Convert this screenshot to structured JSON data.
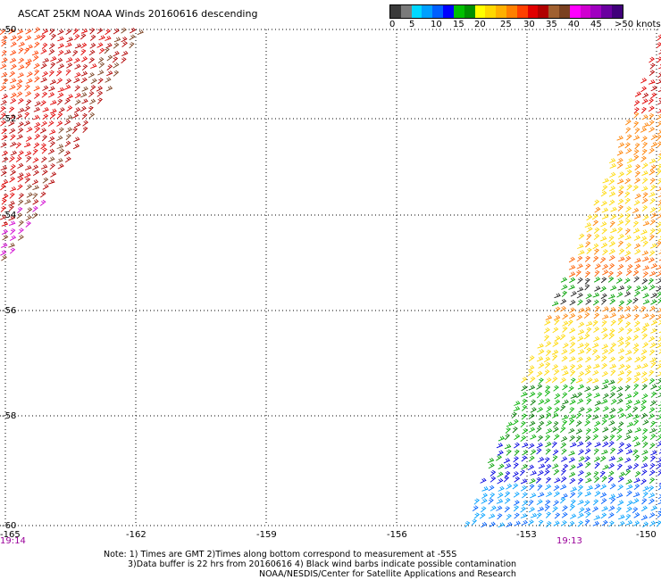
{
  "title": "ASCAT 25KM NOAA Winds 20160616 descending",
  "colorbar": {
    "colors": [
      "#3a3a3a",
      "#7a7a7a",
      "#00d8ff",
      "#00a0ff",
      "#0060ff",
      "#0000ff",
      "#00c000",
      "#009000",
      "#ffff00",
      "#ffd800",
      "#ffb000",
      "#ff8000",
      "#ff4000",
      "#e00000",
      "#b00000",
      "#a06030",
      "#7a4020",
      "#ff00ff",
      "#d000d0",
      "#a000c0",
      "#6a00a0",
      "#40007a"
    ],
    "labels": [
      "0",
      "5",
      "10",
      "15",
      "20",
      "25",
      "30",
      "35",
      "40",
      "45",
      ">50 knots"
    ]
  },
  "map": {
    "lat_labels": [
      "-50",
      "-52",
      "-54",
      "-56",
      "-58",
      "-60"
    ],
    "lon_labels": [
      "-165",
      "-162",
      "-159",
      "-156",
      "-153",
      "-150"
    ],
    "time_labels": [
      "19:14",
      "19:13"
    ]
  },
  "notes": [
    "Note: 1) Times are GMT 2)Times along bottom correspond to measurement at -55S",
    "3)Data buffer is 22 hrs from 20160616 4) Black wind barbs indicate possible contamination",
    "NOAA/NESDIS/Center for Satellite Applications and Research"
  ]
}
